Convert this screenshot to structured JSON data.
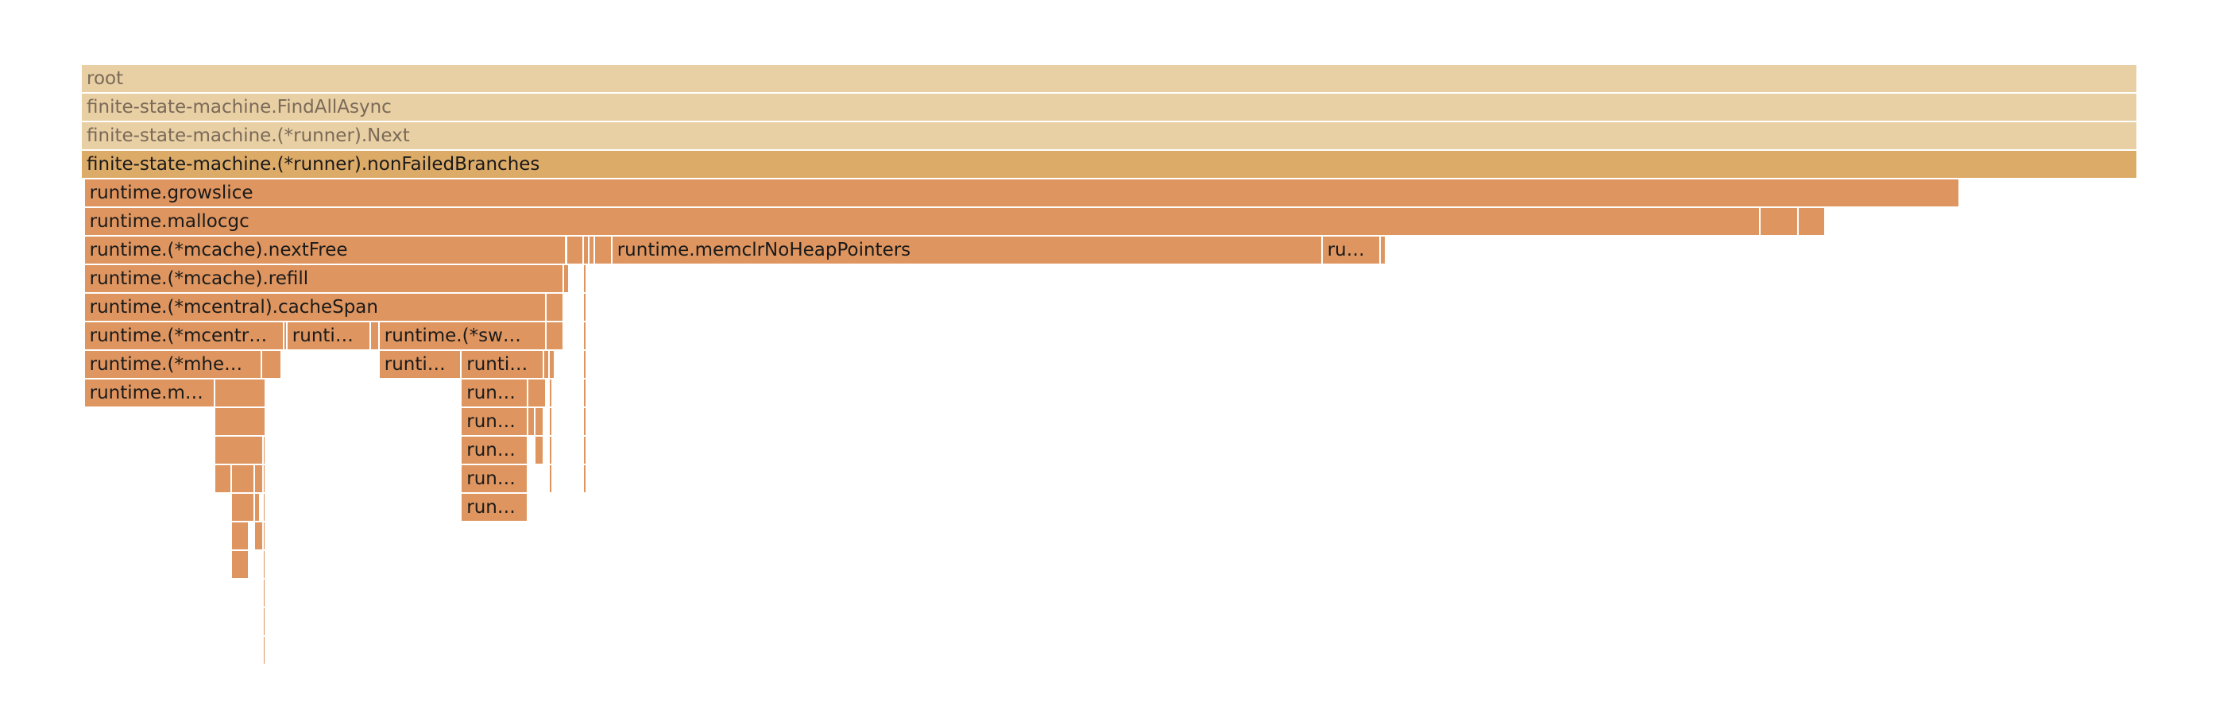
{
  "chart_data": {
    "type": "flamegraph",
    "colors": {
      "background": "#ffffff",
      "ancestor": "#e8cfa4",
      "focus": "#ddab68",
      "frame": "#de955f"
    },
    "frames": [
      {
        "name": "root",
        "label": "root",
        "depth": 0,
        "start": 0,
        "end": 1,
        "style": "ancestor"
      },
      {
        "name": "finite-state-machine.FindAllAsync",
        "label": "finite-state-machine.FindAllAsync",
        "depth": 1,
        "start": 0,
        "end": 1,
        "style": "ancestor"
      },
      {
        "name": "finite-state-machine.(*runner).Next",
        "label": "finite-state-machine.(*runner).Next",
        "depth": 2,
        "start": 0,
        "end": 1,
        "style": "ancestor"
      },
      {
        "name": "finite-state-machine.(*runner).nonFailedBranches",
        "label": "finite-state-machine.(*runner).nonFailedBranches",
        "depth": 3,
        "start": 0,
        "end": 1,
        "style": "focus"
      },
      {
        "name": "runtime.growslice",
        "label": "runtime.growslice",
        "depth": 4,
        "start": 0.0014,
        "end": 0.9133,
        "style": "frame"
      },
      {
        "name": "runtime.mallocgc",
        "label": "runtime.mallocgc",
        "depth": 5,
        "start": 0.0014,
        "end": 0.8163,
        "style": "frame"
      },
      {
        "name": "",
        "label": "",
        "depth": 5,
        "start": 0.8163,
        "end": 0.8349,
        "style": "frame"
      },
      {
        "name": "",
        "label": "",
        "depth": 5,
        "start": 0.8349,
        "end": 0.848,
        "style": "frame"
      },
      {
        "name": "runtime.(*mcache).nextFree",
        "label": "runtime.(*mcache).nextFree",
        "depth": 6,
        "start": 0.0014,
        "end": 0.2359,
        "style": "frame"
      },
      {
        "name": "",
        "label": "",
        "depth": 6,
        "start": 0.2359,
        "end": 0.2442,
        "style": "frame"
      },
      {
        "name": "",
        "label": "",
        "depth": 6,
        "start": 0.2442,
        "end": 0.2469,
        "style": "frame"
      },
      {
        "name": "",
        "label": "",
        "depth": 6,
        "start": 0.2469,
        "end": 0.2497,
        "style": "frame"
      },
      {
        "name": "",
        "label": "",
        "depth": 6,
        "start": 0.2497,
        "end": 0.258,
        "style": "frame"
      },
      {
        "name": "runtime.memclrNoHeapPointers",
        "label": "runtime.memclrNoHeapPointers",
        "depth": 6,
        "start": 0.258,
        "end": 0.6034,
        "style": "frame"
      },
      {
        "name": "ru…",
        "label": "ru…",
        "depth": 6,
        "start": 0.6034,
        "end": 0.6317,
        "style": "frame"
      },
      {
        "name": "",
        "label": "",
        "depth": 6,
        "start": 0.6317,
        "end": 0.6345,
        "style": "frame"
      },
      {
        "name": "runtime.(*mcache).refill",
        "label": "runtime.(*mcache).refill",
        "depth": 7,
        "start": 0.0014,
        "end": 0.2345,
        "style": "frame"
      },
      {
        "name": "",
        "label": "",
        "depth": 7,
        "start": 0.2345,
        "end": 0.2373,
        "style": "frame"
      },
      {
        "name": "",
        "label": "",
        "depth": 7,
        "start": 0.2442,
        "end": 0.2456,
        "style": "frame"
      },
      {
        "name": "runtime.(*mcentral).cacheSpan",
        "label": "runtime.(*mcentral).cacheSpan",
        "depth": 8,
        "start": 0.0014,
        "end": 0.2262,
        "style": "frame"
      },
      {
        "name": "",
        "label": "",
        "depth": 8,
        "start": 0.2262,
        "end": 0.2345,
        "style": "frame"
      },
      {
        "name": "",
        "label": "",
        "depth": 8,
        "start": 0.2442,
        "end": 0.2456,
        "style": "frame"
      },
      {
        "name": "runtime.(*mcentr…",
        "label": "runtime.(*mcentr…",
        "depth": 9,
        "start": 0.0014,
        "end": 0.0986,
        "style": "frame"
      },
      {
        "name": "",
        "label": "",
        "depth": 9,
        "start": 0.0986,
        "end": 0.1,
        "style": "frame"
      },
      {
        "name": "runti…",
        "label": "runti…",
        "depth": 9,
        "start": 0.1,
        "end": 0.1407,
        "style": "frame"
      },
      {
        "name": "",
        "label": "",
        "depth": 9,
        "start": 0.1407,
        "end": 0.1448,
        "style": "frame"
      },
      {
        "name": "runtime.(*sw…",
        "label": "runtime.(*sw…",
        "depth": 9,
        "start": 0.1448,
        "end": 0.2262,
        "style": "frame"
      },
      {
        "name": "",
        "label": "",
        "depth": 9,
        "start": 0.2262,
        "end": 0.2345,
        "style": "frame"
      },
      {
        "name": "",
        "label": "",
        "depth": 9,
        "start": 0.2442,
        "end": 0.2456,
        "style": "frame"
      },
      {
        "name": "runtime.(*mhe…",
        "label": "runtime.(*mhe…",
        "depth": 10,
        "start": 0.0014,
        "end": 0.0876,
        "style": "frame"
      },
      {
        "name": "",
        "label": "",
        "depth": 10,
        "start": 0.0876,
        "end": 0.0972,
        "style": "frame"
      },
      {
        "name": "runti…",
        "label": "runti…",
        "depth": 10,
        "start": 0.1448,
        "end": 0.1848,
        "style": "frame"
      },
      {
        "name": "runti…",
        "label": "runti…",
        "depth": 10,
        "start": 0.1848,
        "end": 0.2248,
        "style": "frame"
      },
      {
        "name": "",
        "label": "",
        "depth": 10,
        "start": 0.2248,
        "end": 0.2276,
        "style": "frame"
      },
      {
        "name": "",
        "label": "",
        "depth": 10,
        "start": 0.2276,
        "end": 0.2303,
        "style": "frame"
      },
      {
        "name": "",
        "label": "",
        "depth": 10,
        "start": 0.2442,
        "end": 0.2456,
        "style": "frame"
      },
      {
        "name": "runtime.m…",
        "label": "runtime.m…",
        "depth": 11,
        "start": 0.0014,
        "end": 0.0648,
        "style": "frame"
      },
      {
        "name": "",
        "label": "",
        "depth": 11,
        "start": 0.0648,
        "end": 0.0897,
        "style": "frame"
      },
      {
        "name": "run…",
        "label": "run…",
        "depth": 11,
        "start": 0.1848,
        "end": 0.2172,
        "style": "frame"
      },
      {
        "name": "",
        "label": "",
        "depth": 11,
        "start": 0.2172,
        "end": 0.2262,
        "style": "frame"
      },
      {
        "name": "",
        "label": "",
        "depth": 11,
        "start": 0.2276,
        "end": 0.229,
        "style": "frame"
      },
      {
        "name": "",
        "label": "",
        "depth": 11,
        "start": 0.2442,
        "end": 0.2456,
        "style": "frame"
      },
      {
        "name": "",
        "label": "",
        "depth": 12,
        "start": 0.0648,
        "end": 0.0897,
        "style": "frame"
      },
      {
        "name": "run…",
        "label": "run…",
        "depth": 12,
        "start": 0.1848,
        "end": 0.2172,
        "style": "frame"
      },
      {
        "name": "",
        "label": "",
        "depth": 12,
        "start": 0.2172,
        "end": 0.2207,
        "style": "frame"
      },
      {
        "name": "",
        "label": "",
        "depth": 12,
        "start": 0.2207,
        "end": 0.2248,
        "style": "frame"
      },
      {
        "name": "",
        "label": "",
        "depth": 12,
        "start": 0.2276,
        "end": 0.229,
        "style": "frame"
      },
      {
        "name": "",
        "label": "",
        "depth": 12,
        "start": 0.2442,
        "end": 0.2456,
        "style": "frame"
      },
      {
        "name": "",
        "label": "",
        "depth": 13,
        "start": 0.0648,
        "end": 0.0883,
        "style": "frame"
      },
      {
        "name": "",
        "label": "",
        "depth": 13,
        "start": 0.0883,
        "end": 0.0897,
        "style": "frame"
      },
      {
        "name": "run…",
        "label": "run…",
        "depth": 13,
        "start": 0.1848,
        "end": 0.2172,
        "style": "frame"
      },
      {
        "name": "",
        "label": "",
        "depth": 13,
        "start": 0.2207,
        "end": 0.2248,
        "style": "frame"
      },
      {
        "name": "",
        "label": "",
        "depth": 13,
        "start": 0.2276,
        "end": 0.229,
        "style": "frame"
      },
      {
        "name": "",
        "label": "",
        "depth": 13,
        "start": 0.2442,
        "end": 0.2456,
        "style": "frame"
      },
      {
        "name": "",
        "label": "",
        "depth": 14,
        "start": 0.0648,
        "end": 0.0731,
        "style": "frame"
      },
      {
        "name": "",
        "label": "",
        "depth": 14,
        "start": 0.0731,
        "end": 0.0841,
        "style": "frame"
      },
      {
        "name": "",
        "label": "",
        "depth": 14,
        "start": 0.0841,
        "end": 0.0883,
        "style": "frame"
      },
      {
        "name": "",
        "label": "",
        "depth": 14,
        "start": 0.0883,
        "end": 0.0897,
        "style": "frame"
      },
      {
        "name": "run…",
        "label": "run…",
        "depth": 14,
        "start": 0.1848,
        "end": 0.2172,
        "style": "frame"
      },
      {
        "name": "",
        "label": "",
        "depth": 14,
        "start": 0.2276,
        "end": 0.229,
        "style": "frame"
      },
      {
        "name": "",
        "label": "",
        "depth": 14,
        "start": 0.2442,
        "end": 0.2456,
        "style": "frame"
      },
      {
        "name": "",
        "label": "",
        "depth": 15,
        "start": 0.0731,
        "end": 0.0841,
        "style": "frame"
      },
      {
        "name": "",
        "label": "",
        "depth": 15,
        "start": 0.0841,
        "end": 0.0869,
        "style": "frame"
      },
      {
        "name": "",
        "label": "",
        "depth": 15,
        "start": 0.0883,
        "end": 0.0897,
        "style": "frame"
      },
      {
        "name": "run…",
        "label": "run…",
        "depth": 15,
        "start": 0.1848,
        "end": 0.2172,
        "style": "frame"
      },
      {
        "name": "",
        "label": "",
        "depth": 16,
        "start": 0.0731,
        "end": 0.0814,
        "style": "frame"
      },
      {
        "name": "",
        "label": "",
        "depth": 16,
        "start": 0.0841,
        "end": 0.0883,
        "style": "frame"
      },
      {
        "name": "",
        "label": "",
        "depth": 16,
        "start": 0.0883,
        "end": 0.0897,
        "style": "frame"
      },
      {
        "name": "",
        "label": "",
        "depth": 17,
        "start": 0.0731,
        "end": 0.0814,
        "style": "frame"
      },
      {
        "name": "",
        "label": "",
        "depth": 17,
        "start": 0.0883,
        "end": 0.0897,
        "style": "frame"
      },
      {
        "name": "",
        "label": "",
        "depth": 18,
        "start": 0.0883,
        "end": 0.0897,
        "style": "frame"
      },
      {
        "name": "",
        "label": "",
        "depth": 19,
        "start": 0.0883,
        "end": 0.0897,
        "style": "frame"
      },
      {
        "name": "",
        "label": "",
        "depth": 20,
        "start": 0.0883,
        "end": 0.0897,
        "style": "frame"
      }
    ]
  }
}
